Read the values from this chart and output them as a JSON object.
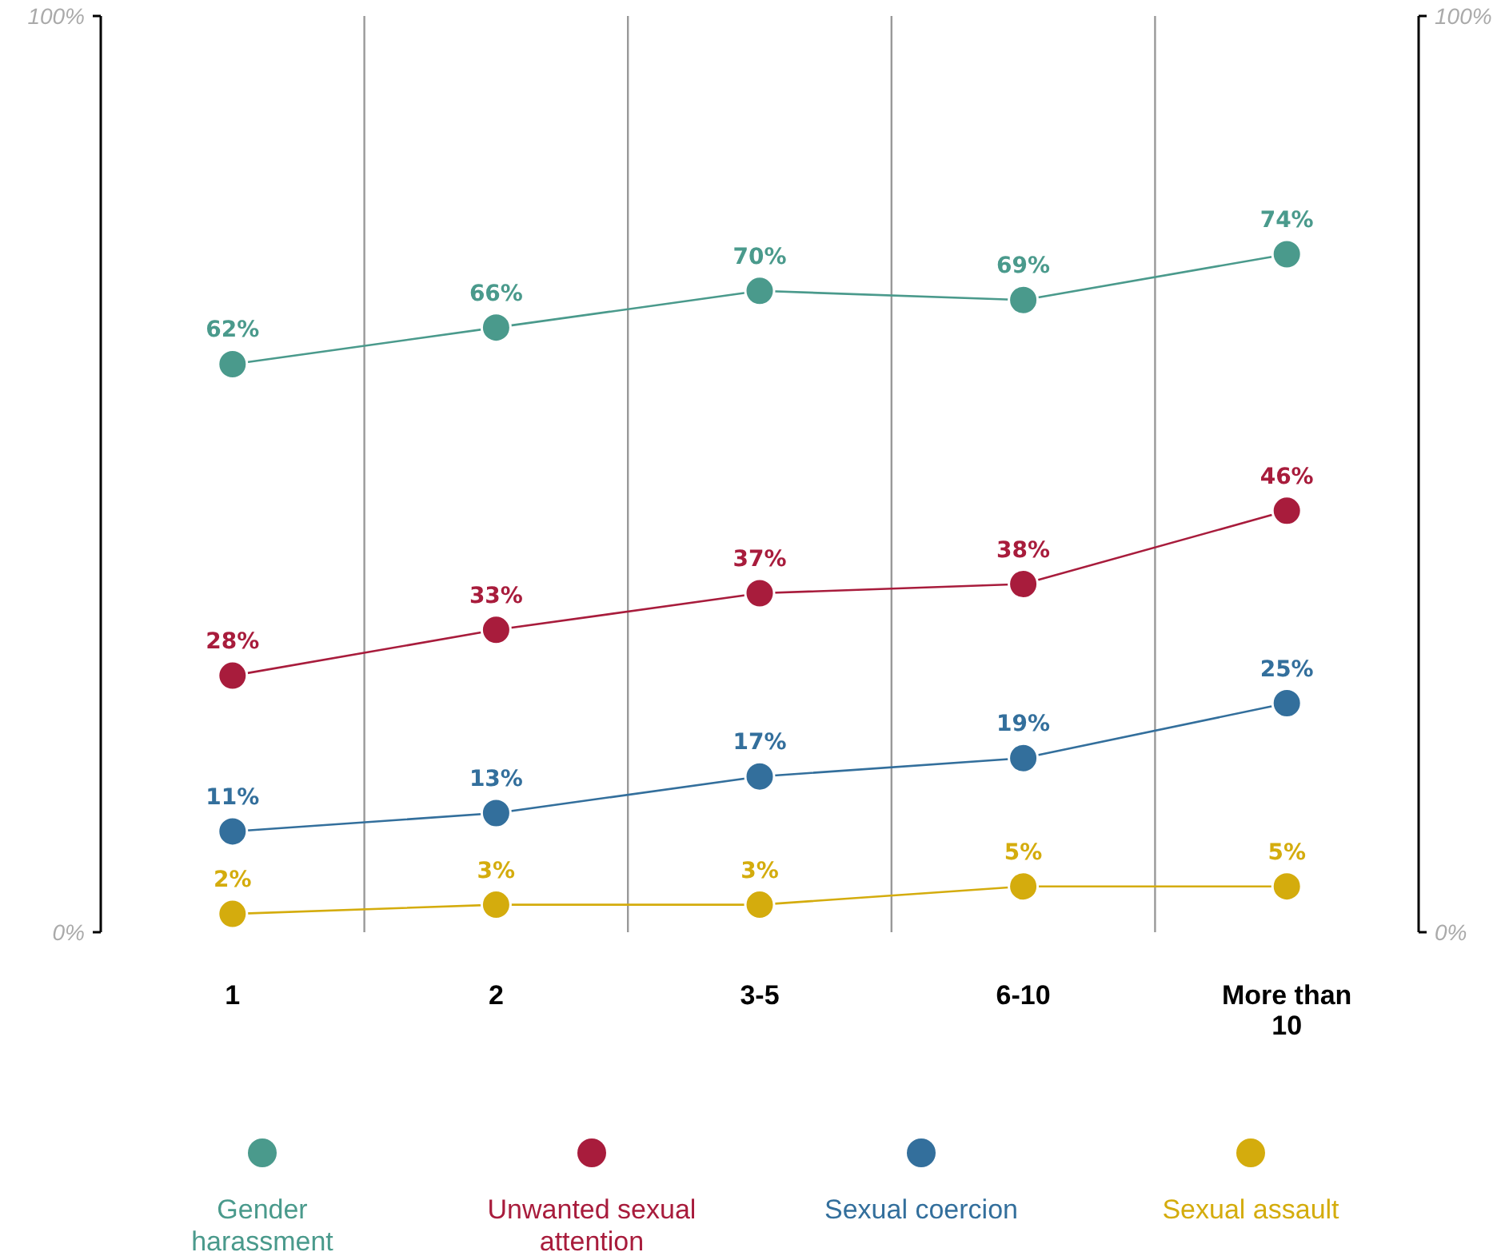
{
  "chart_data": {
    "type": "line",
    "categories": [
      "1",
      "2",
      "3-5",
      "6-10",
      "More than 10"
    ],
    "ylim": [
      0,
      100
    ],
    "yticks": [
      {
        "value": 0,
        "label": "0%"
      },
      {
        "value": 100,
        "label": "100%"
      }
    ],
    "y2lim": [
      0,
      100
    ],
    "y2ticks": [
      {
        "value": 0,
        "label": "0%"
      },
      {
        "value": 100,
        "label": "100%"
      }
    ],
    "grid": "x",
    "legend": "bottom",
    "marker": "circle",
    "line_style": "solid",
    "series": [
      {
        "name": "Gender harassment",
        "color": "#4a9a8c",
        "values": [
          62,
          66,
          70,
          69,
          74
        ],
        "value_labels": [
          "62%",
          "66%",
          "70%",
          "69%",
          "74%"
        ]
      },
      {
        "name": "Unwanted sexual attention",
        "color": "#a81c3c",
        "values": [
          28,
          33,
          37,
          38,
          46
        ],
        "value_labels": [
          "28%",
          "33%",
          "37%",
          "38%",
          "46%"
        ]
      },
      {
        "name": "Sexual coercion",
        "color": "#336f9c",
        "values": [
          11,
          13,
          17,
          19,
          25
        ],
        "value_labels": [
          "11%",
          "13%",
          "17%",
          "19%",
          "25%"
        ]
      },
      {
        "name": "Sexual assault",
        "color": "#d4ac0d",
        "values": [
          2,
          3,
          3,
          5,
          5
        ],
        "value_labels": [
          "2%",
          "3%",
          "3%",
          "5%",
          "5%"
        ]
      }
    ]
  }
}
